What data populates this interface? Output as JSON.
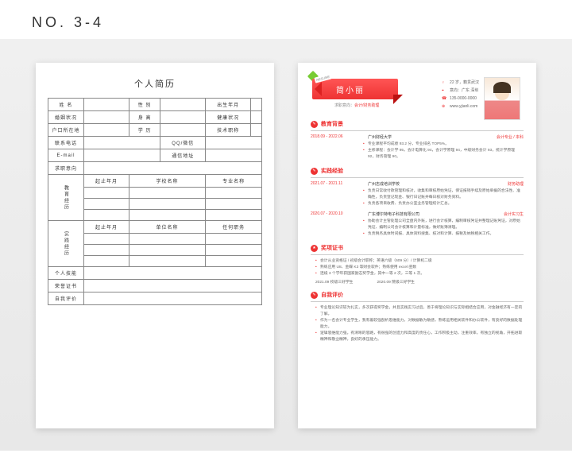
{
  "header": {
    "page_no": "NO. 3-4"
  },
  "colors": {
    "accent": "#e33",
    "text": "#444",
    "muted": "#888",
    "border": "#ccc",
    "bg_canvas": "#efefef"
  },
  "left": {
    "title": "个人简历",
    "fields": {
      "name": "姓 名",
      "gender": "性 别",
      "birth": "出生年月",
      "marital": "婚姻状况",
      "height": "身 高",
      "health": "健康状况",
      "hukou": "户口所在地",
      "education": "学 历",
      "title": "技术职称",
      "phone": "联系电话",
      "qq": "QQ/微信",
      "email": "E-mail",
      "addr": "通信地址",
      "intent": "求职意向",
      "edu_block": "教育经历",
      "edu_from": "起止年月",
      "edu_school": "学校名称",
      "edu_major": "专业名称",
      "exp_block": "实践经历",
      "exp_from": "起止年月",
      "exp_org": "单位名称",
      "exp_role": "任何职务",
      "skills": "个人技能",
      "honors": "荣誉证书",
      "self": "自我评价"
    }
  },
  "right": {
    "ribbon_tag": "RESUME",
    "name": "简小丽",
    "intent_label": "求职意向：",
    "intent_value": "会计/财务助理",
    "info": {
      "age_loc": "22 岁，籍贯武汉",
      "region": "意向：广东 深圳",
      "phone": "135-0000-0000",
      "site": "www.yjianli.com"
    },
    "sections": {
      "edu": {
        "title": "教育背景",
        "entries": [
          {
            "date": "2018.09 - 2022.06",
            "org": "广州财经大学",
            "role": "会计专业 / 本科",
            "bullets": [
              "专业课程平均成绩 93.2 分，专业排名 TOP5%。",
              "主修课程：会计学 95，会计电算化 94，会计学原理 94，中级财务会计 93，统计学原理 92，财务管理 90。"
            ]
          }
        ]
      },
      "exp": {
        "title": "实践经验",
        "entries": [
          {
            "date": "2021.07 - 2021.11",
            "org": "广州志成培训学校",
            "role": "财务助理",
            "bullets": [
              "负责日常收付款管理和核对，收集和审核原始凭证，保证报销手续及原始单据的合法性、准确性，负责登记现金、银行日记账并每日核对财务资料。",
              "负责各项目收费、负责办公室业务管理统计汇总。"
            ]
          },
          {
            "date": "2020.07 - 2020.10",
            "org": "广东博尔特电子科技有限公司",
            "role": "会计实习生",
            "bullets": [
              "协助会计主管处理公司全盘内外账，进行会计核算，编制审核凭证并整理记账凭证，对原始凭证、编制公司会计核算和计量标准，做好账簿清理。",
              "负责税务具体时间报、具体资料搜集、核对和计算、报税及纳税相关工作。"
            ]
          }
        ]
      },
      "cert": {
        "title": "奖项证书",
        "bullets": [
          "会计从业资格证 / 初级会计职称；英语六级（609 分）/ 计算机二级",
          "熟练应用 U8、金蝶 K3 等财会软件；熟练使用 excel 函数",
          "连续 3 个学年获国家励志奖学金，其中一等 2 次，三等 1 次。"
        ],
        "sub": {
          "l": "2021.09  校级三好学生",
          "r": "2020.09  院级三好学生"
        }
      },
      "self": {
        "title": "自我评价",
        "bullets": [
          "专业理论知识较为扎实，多次获得奖学金，并且实践实习过后，善于将理论知识与实际相结合应用，对金融经济有一定的了解。",
          "作为一名会计专业学生，我有着较强剖析思维能力，对数据敏为敏感，熟练运用相关软件和办公软件，有良好的数据处理能力。",
          "逻辑思维能力强，有清晰的思路，有很强的创造力和高度的责任心，工作积极主动，注重效率，有独立的视角，开拓进取精神和敬业精神，良好的承压能力。"
        ]
      }
    }
  }
}
